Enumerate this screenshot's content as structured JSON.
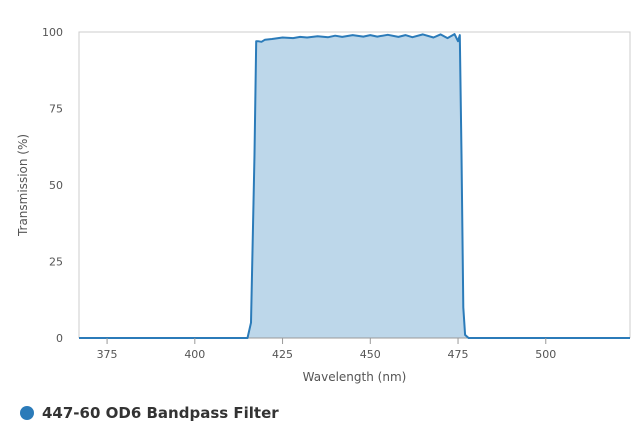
{
  "chart_data": {
    "type": "area",
    "xlabel": "Wavelength (nm)",
    "ylabel": "Transmission (%)",
    "xlim": [
      367,
      524
    ],
    "ylim": [
      0,
      100
    ],
    "x_ticks": [
      375,
      400,
      425,
      450,
      475,
      500
    ],
    "y_ticks": [
      0,
      25,
      50,
      75,
      100
    ],
    "grid": false,
    "legend_position": "bottom-left",
    "series": [
      {
        "name": "447-60 OD6 Bandpass Filter",
        "color": "#2b7bb9",
        "fill_color": "#bdd7ea",
        "x": [
          367,
          415,
          416,
          417,
          417.5,
          418,
          419,
          420,
          422,
          425,
          428,
          430,
          432,
          435,
          438,
          440,
          442,
          445,
          448,
          450,
          452,
          455,
          458,
          460,
          462,
          465,
          468,
          470,
          472,
          474,
          475,
          475.5,
          476,
          476.5,
          477,
          478,
          524
        ],
        "y": [
          0,
          0,
          5,
          60,
          97,
          97,
          96.8,
          97.5,
          97.7,
          98.2,
          98,
          98.4,
          98.2,
          98.6,
          98.3,
          98.8,
          98.4,
          99,
          98.5,
          99,
          98.5,
          99.1,
          98.4,
          99,
          98.3,
          99.2,
          98.2,
          99.2,
          98,
          99.3,
          97,
          99,
          60,
          10,
          1,
          0,
          0
        ]
      }
    ]
  }
}
